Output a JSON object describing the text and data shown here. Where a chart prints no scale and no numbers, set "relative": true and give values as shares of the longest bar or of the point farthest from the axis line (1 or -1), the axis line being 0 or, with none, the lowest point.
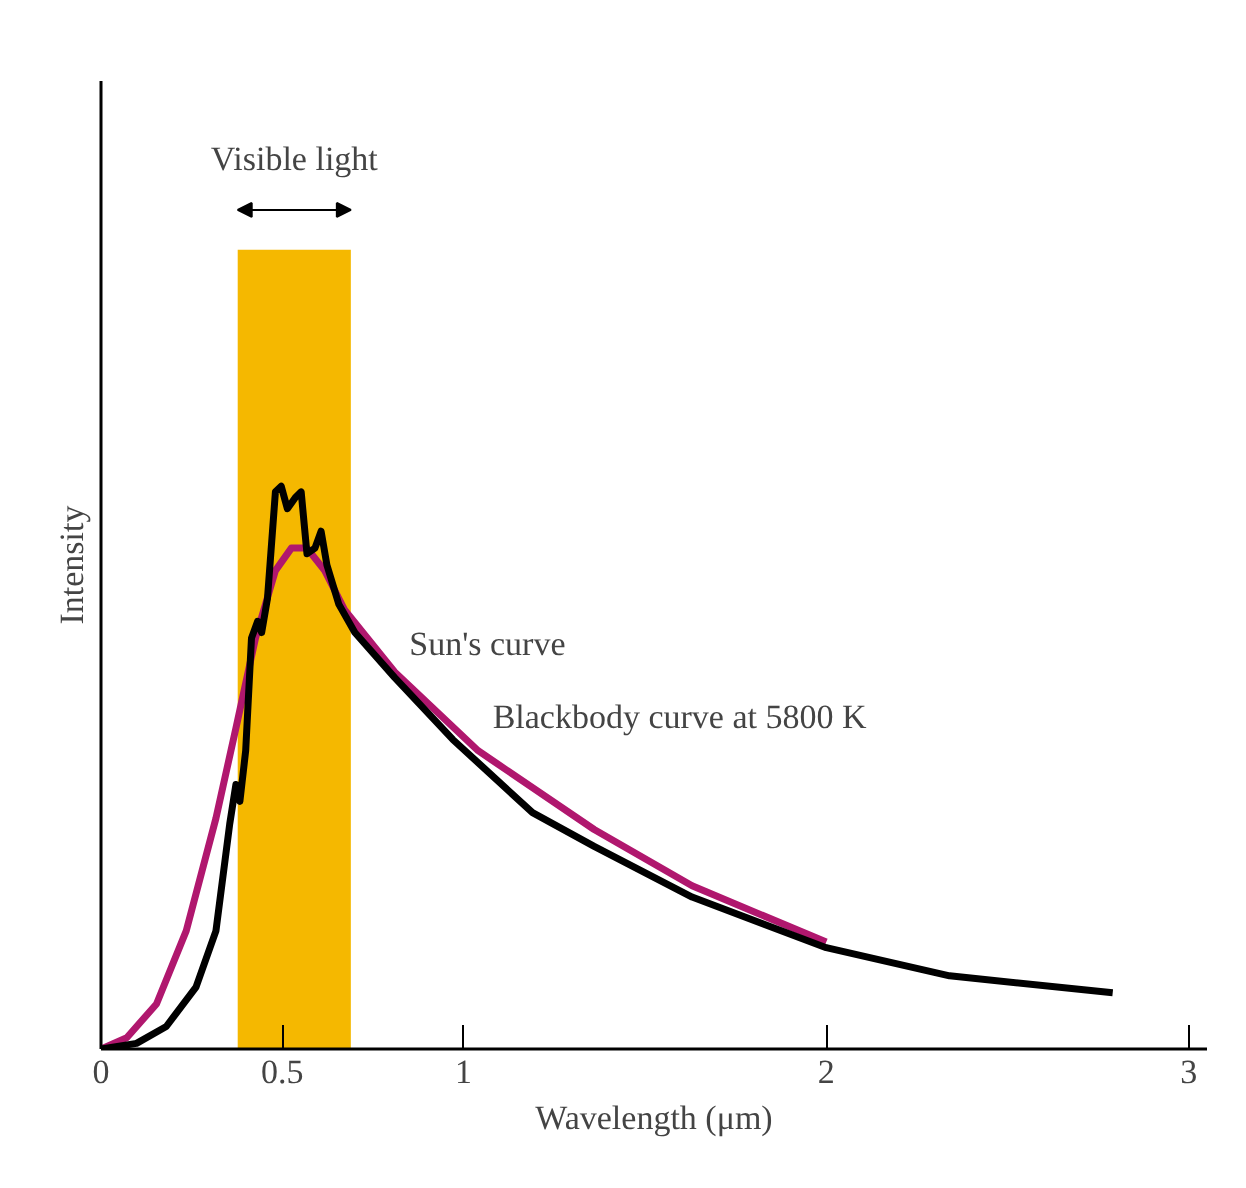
{
  "chart_data": {
    "type": "line",
    "relative": true,
    "xlabel": "Wavelength (μm)",
    "ylabel": "Intensity",
    "xlim": [
      0,
      3.05
    ],
    "xticks": [
      0,
      0.5,
      1,
      2,
      3
    ],
    "grid": false,
    "legend": false,
    "marker": "none",
    "line_style": "solid",
    "bands": [
      {
        "axis": "x",
        "from": 0.377,
        "to": 0.689,
        "label": "Visible light",
        "color": "#f5b800"
      }
    ],
    "series": [
      {
        "name": "Blackbody curve at 5800 K",
        "color": "#b0176e",
        "x": [
          0,
          0.071,
          0.153,
          0.235,
          0.317,
          0.372,
          0.426,
          0.481,
          0.525,
          0.568,
          0.617,
          0.672,
          0.81,
          1.04,
          1.36,
          1.63,
          2.0
        ],
        "values": [
          0,
          0.02,
          0.08,
          0.21,
          0.41,
          0.57,
          0.73,
          0.85,
          0.89,
          0.89,
          0.85,
          0.78,
          0.67,
          0.53,
          0.39,
          0.29,
          0.19
        ]
      },
      {
        "name": "Sun's curve",
        "color": "#000000",
        "x": [
          0,
          0.098,
          0.18,
          0.262,
          0.317,
          0.355,
          0.372,
          0.383,
          0.399,
          0.415,
          0.432,
          0.443,
          0.459,
          0.481,
          0.497,
          0.514,
          0.536,
          0.552,
          0.568,
          0.59,
          0.607,
          0.623,
          0.656,
          0.7,
          0.81,
          0.97,
          1.19,
          1.36,
          1.63,
          2.0,
          2.34,
          2.79
        ],
        "values": [
          0,
          0.01,
          0.04,
          0.11,
          0.21,
          0.4,
          0.47,
          0.44,
          0.53,
          0.73,
          0.76,
          0.74,
          0.8,
          0.99,
          1.0,
          0.96,
          0.98,
          0.99,
          0.88,
          0.89,
          0.92,
          0.86,
          0.79,
          0.74,
          0.66,
          0.55,
          0.42,
          0.36,
          0.27,
          0.18,
          0.13,
          0.1
        ]
      }
    ]
  }
}
